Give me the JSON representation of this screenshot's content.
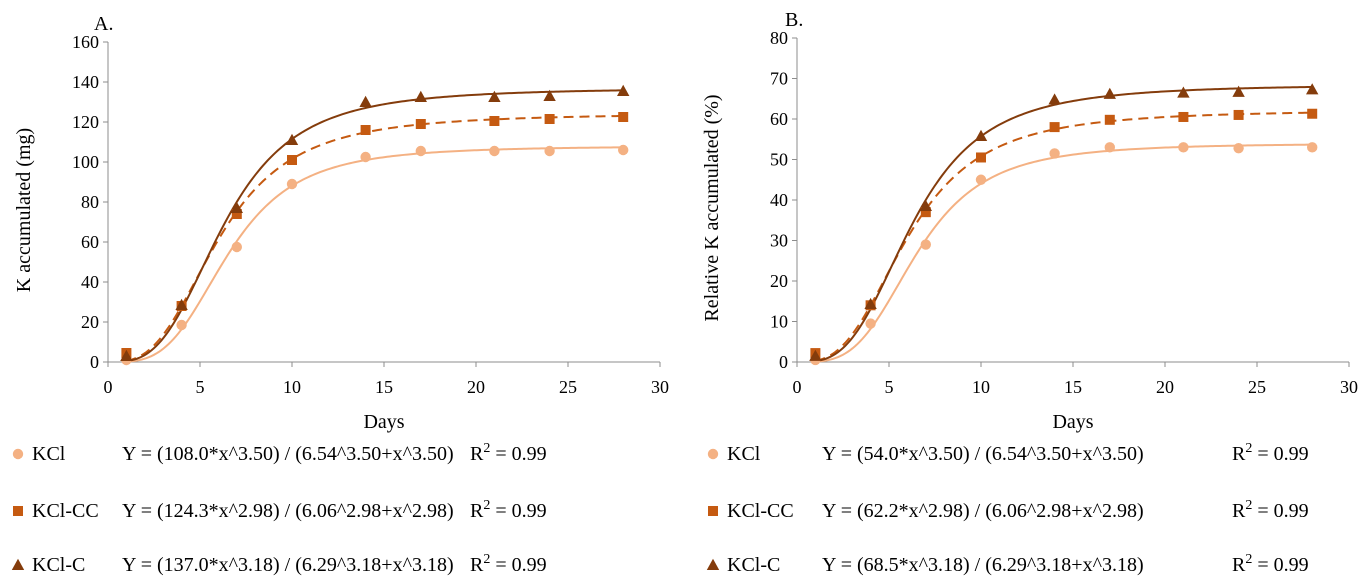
{
  "chart_data": [
    {
      "type": "scatter",
      "panel_label": "A.",
      "xlabel": "Days",
      "ylabel": "K accumulated (mg)",
      "xlim": [
        0,
        30
      ],
      "ylim": [
        0,
        160
      ],
      "xticks": [
        0,
        5,
        10,
        15,
        20,
        25,
        30
      ],
      "yticks": [
        0,
        20,
        40,
        60,
        80,
        100,
        120,
        140,
        160
      ],
      "x": [
        1,
        4,
        7,
        10,
        14,
        17,
        21,
        24,
        28
      ],
      "series": [
        {
          "name": "KCl",
          "values": [
            1,
            18.5,
            57.5,
            89,
            102.5,
            105.5,
            105.5,
            105.5,
            106
          ],
          "color": "#f4b183",
          "marker": "circle",
          "line": "solid",
          "fit": {
            "a": 108.0,
            "b": 6.54,
            "n": 3.5
          },
          "equation": "Y = (108.0*x^3.50) / (6.54^3.50+x^3.50)",
          "r2": "= 0.99"
        },
        {
          "name": "KCl-CC",
          "values": [
            4.5,
            28,
            74,
            101,
            116,
            119,
            120.5,
            121.5,
            122.5
          ],
          "color": "#c55a11",
          "marker": "square",
          "line": "dashed",
          "fit": {
            "a": 124.3,
            "b": 6.06,
            "n": 2.98
          },
          "equation": "Y = (124.3*x^2.98) / (6.06^2.98+x^2.98)",
          "r2": "= 0.99"
        },
        {
          "name": "KCl-C",
          "values": [
            3,
            28.5,
            77,
            111,
            130,
            132.5,
            132.5,
            133,
            135.5
          ],
          "color": "#843c0c",
          "marker": "triangle",
          "line": "solid",
          "fit": {
            "a": 137.0,
            "b": 6.29,
            "n": 3.18
          },
          "equation": "Y = (137.0*x^3.18) / (6.29^3.18+x^3.18)",
          "r2": "= 0.99"
        }
      ]
    },
    {
      "type": "scatter",
      "panel_label": "B.",
      "xlabel": "Days",
      "ylabel": "Relative K accumulated (%)",
      "xlim": [
        0,
        30
      ],
      "ylim": [
        0,
        80
      ],
      "xticks": [
        0,
        5,
        10,
        15,
        20,
        25,
        30
      ],
      "yticks": [
        0,
        10,
        20,
        30,
        40,
        50,
        60,
        70,
        80
      ],
      "x": [
        1,
        4,
        7,
        10,
        14,
        17,
        21,
        24,
        28
      ],
      "series": [
        {
          "name": "KCl",
          "values": [
            0.5,
            9.5,
            29,
            45,
            51.5,
            53,
            53,
            52.8,
            53
          ],
          "color": "#f4b183",
          "marker": "circle",
          "line": "solid",
          "fit": {
            "a": 54.0,
            "b": 6.54,
            "n": 3.5
          },
          "equation": "Y = (54.0*x^3.50) / (6.54^3.50+x^3.50)",
          "r2": "= 0.99"
        },
        {
          "name": "KCl-CC",
          "values": [
            2.2,
            14,
            37,
            50.5,
            58,
            59.8,
            60.5,
            61,
            61.3
          ],
          "color": "#c55a11",
          "marker": "square",
          "line": "dashed",
          "fit": {
            "a": 62.2,
            "b": 6.06,
            "n": 2.98
          },
          "equation": "Y = (62.2*x^2.98) / (6.06^2.98+x^2.98)",
          "r2": "= 0.99"
        },
        {
          "name": "KCl-C",
          "values": [
            1.5,
            14.3,
            38.5,
            55.8,
            64.8,
            66.2,
            66.5,
            66.7,
            67.3
          ],
          "color": "#843c0c",
          "marker": "triangle",
          "line": "solid",
          "fit": {
            "a": 68.5,
            "b": 6.29,
            "n": 3.18
          },
          "equation": "Y = (68.5*x^3.18) / (6.29^3.18+x^3.18)",
          "r2": "= 0.99"
        }
      ]
    }
  ],
  "legend": {
    "r2_label": "R",
    "r2_sup": "2"
  }
}
